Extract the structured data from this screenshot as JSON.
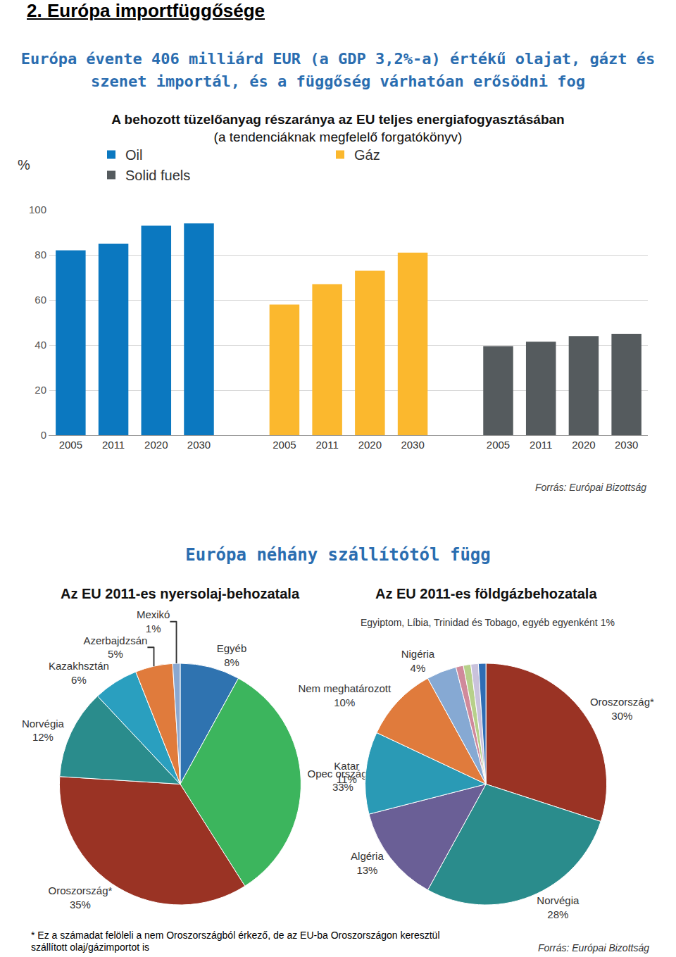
{
  "page": {
    "section_title": "2. Európa importfüggősége",
    "headline": "Európa évente 406 milliárd EUR (a GDP 3,2%-a) értékű olajat, gázt és szenet importál, és a függőség várhatóan erősödni fog",
    "subheadline": "Európa néhány szállítótól függ",
    "footnote": "* Ez a számadat felöleli a nem Oroszországból érkező, de az EU-ba Oroszországon keresztül szállított olaj/gázimportot is",
    "source": "Forrás: Európai Bizottság"
  },
  "chart_data": [
    {
      "type": "bar",
      "title": "A behozott tüzelőanyag részaránya az EU teljes energiafogyasztásában",
      "subtitle": "(a tendenciáknak megfelelő forgatókönyv)",
      "y_label": "%",
      "categories": [
        "2005",
        "2011",
        "2020",
        "2030",
        null,
        "2005",
        "2011",
        "2020",
        "2030",
        null,
        "2005",
        "2011",
        "2020",
        "2030"
      ],
      "series": [
        {
          "name": "Oil",
          "color": "#0b78c0",
          "values": [
            82,
            85,
            93,
            94,
            null,
            null,
            null,
            null,
            null,
            null,
            null,
            null,
            null,
            null
          ]
        },
        {
          "name": "Gáz",
          "color": "#fbb82e",
          "values": [
            null,
            null,
            null,
            null,
            null,
            58,
            67,
            73,
            81,
            null,
            null,
            null,
            null,
            null
          ]
        },
        {
          "name": "Solid fuels",
          "color": "#555b5e",
          "values": [
            null,
            null,
            null,
            null,
            null,
            null,
            null,
            null,
            null,
            null,
            39.5,
            41.5,
            44,
            45
          ]
        }
      ],
      "ylim": [
        0,
        100
      ],
      "yticks": [
        0,
        20,
        40,
        60,
        80,
        100
      ],
      "grid": true,
      "legend": "top",
      "source": "Forrás: Európai Bizottság"
    },
    {
      "type": "pie",
      "title": "Az EU 2011-es nyersolaj-behozatala",
      "categories": [
        "Egyéb",
        "Opec országok",
        "Oroszország*",
        "Norvégia",
        "Kazakhsztán",
        "Azerbajdzsán",
        "Mexikó"
      ],
      "values": [
        8,
        33,
        35,
        12,
        6,
        5,
        1
      ],
      "value_labels": [
        "8%",
        "33%",
        "35%",
        "12%",
        "6%",
        "5%",
        "1%"
      ],
      "colors": [
        "#2f73b0",
        "#3cb55d",
        "#9a3324",
        "#2a8c8c",
        "#2a9fbf",
        "#e07b3c",
        "#8aa8d0"
      ]
    },
    {
      "type": "pie",
      "title": "Az EU 2011-es földgázbehozatala",
      "categories": [
        "Oroszország*",
        "Norvégia",
        "Algéria",
        "Katar",
        "Nem meghatározott",
        "Nigéria",
        null,
        null,
        null,
        null
      ],
      "values": [
        30,
        28,
        13,
        11,
        10,
        4,
        1,
        1,
        1,
        1
      ],
      "value_labels": [
        "30%",
        "28%",
        "13%",
        "11%",
        "10%",
        "4%",
        null,
        null,
        null,
        null
      ],
      "colors": [
        "#9a3324",
        "#2a8c8c",
        "#6a5f96",
        "#2a9ab5",
        "#e07b3c",
        "#86a9d3",
        "#d08a9b",
        "#b7d08a",
        "#c9c2dc",
        "#2f6db5"
      ],
      "annotations": [
        {
          "text": "Egyiptom, Líbia, Trinidad és Tobago, egyéb egyenként 1%"
        }
      ]
    }
  ]
}
